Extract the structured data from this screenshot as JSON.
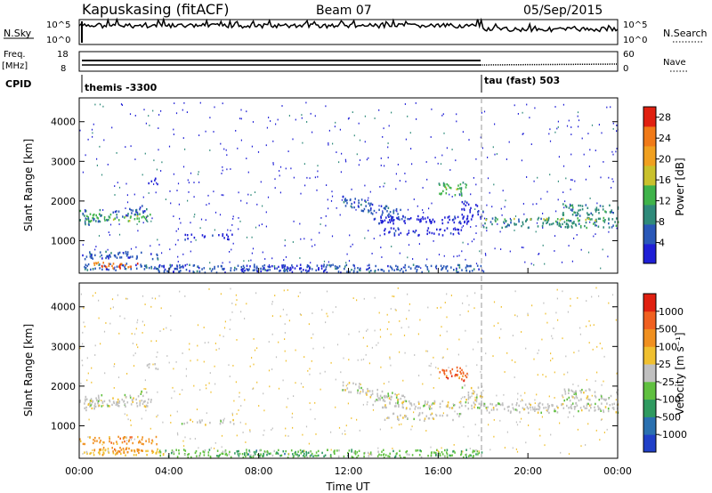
{
  "header": {
    "station": "Kapuskasing (fitACF)",
    "beam": "Beam 07",
    "date": "05/Sep/2015"
  },
  "panels": {
    "nsky": {
      "label": "N.Sky",
      "ticks": [
        "10^5",
        "10^0"
      ],
      "right_label": "N.Search",
      "right_ticks": [
        "10^5",
        "10^0"
      ]
    },
    "freq": {
      "label": "Freq.",
      "unit": "[MHz]",
      "ticks": [
        "18",
        "8"
      ],
      "right_label": "Nave",
      "right_ticks": [
        "60",
        "0"
      ]
    },
    "cpid": {
      "label": "CPID",
      "segments": [
        {
          "name": "themis -3300",
          "start_hour": 0,
          "end_hour": 18
        },
        {
          "name": "tau (fast) 503",
          "start_hour": 18,
          "end_hour": 24
        }
      ]
    }
  },
  "chart_data": [
    {
      "type": "heatmap",
      "name": "power",
      "ylabel": "Slant Range [km]",
      "xlabel": "Time UT",
      "xlim": [
        0,
        24
      ],
      "ylim": [
        180,
        4600
      ],
      "yticks": [
        1000,
        2000,
        3000,
        4000
      ],
      "xticks": [
        "00:00",
        "04:00",
        "08:00",
        "12:00",
        "16:00",
        "20:00",
        "00:00"
      ],
      "colorbar": {
        "label": "Power [dB]",
        "ticks": [
          4,
          8,
          12,
          16,
          20,
          24,
          28
        ],
        "range": [
          0,
          30
        ],
        "colors": [
          "#1f1fd6",
          "#2a58b8",
          "#2f8a7a",
          "#3fb34a",
          "#c9c12c",
          "#f0a020",
          "#f07a18",
          "#e02010"
        ]
      }
    },
    {
      "type": "heatmap",
      "name": "velocity",
      "ylabel": "Slant Range [km]",
      "xlabel": "Time UT",
      "xlim": [
        0,
        24
      ],
      "ylim": [
        180,
        4600
      ],
      "yticks": [
        1000,
        2000,
        3000,
        4000
      ],
      "xticks": [
        "00:00",
        "04:00",
        "08:00",
        "12:00",
        "16:00",
        "20:00",
        "00:00"
      ],
      "colorbar": {
        "label": "Velocity [m s⁻¹]",
        "ticks": [
          "1000",
          "500",
          "100",
          "25",
          "-25",
          "-100",
          "-500",
          "-1000"
        ],
        "colors": [
          "#2040c8",
          "#2a70b0",
          "#2f9a60",
          "#60c040",
          "#c0c0c0",
          "#f0c030",
          "#f09020",
          "#f06020",
          "#e02010"
        ]
      }
    }
  ]
}
